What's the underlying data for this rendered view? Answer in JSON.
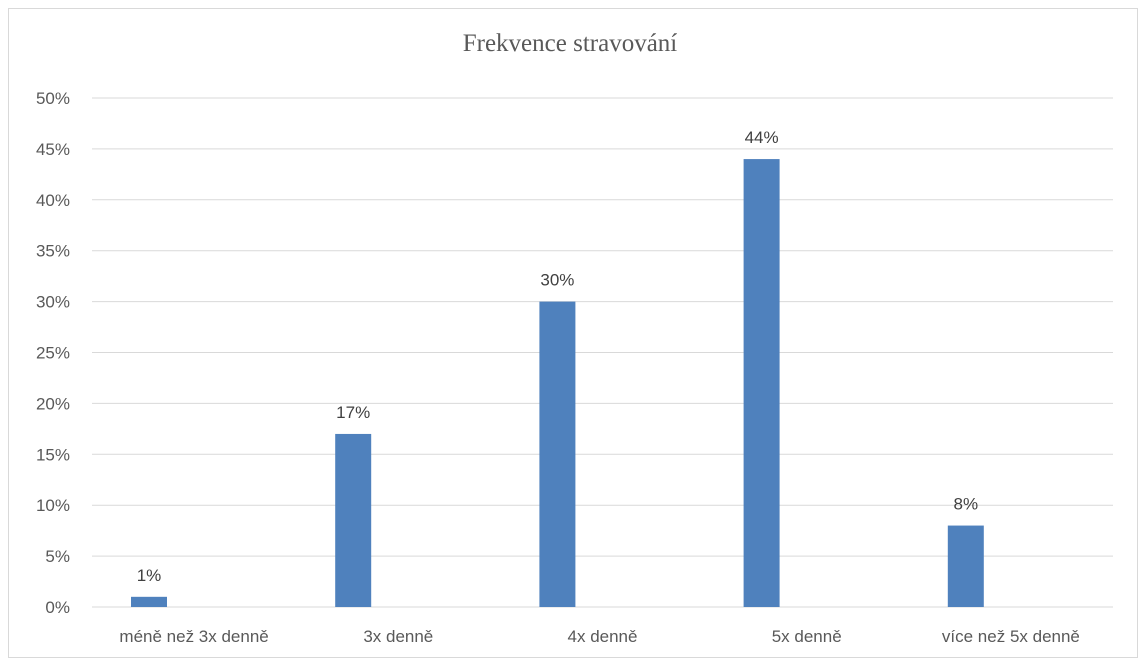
{
  "chart_data": {
    "type": "bar",
    "title": "Frekvence stravování",
    "categories": [
      "méně než 3x denně",
      "3x denně",
      "4x denně",
      "5x denně",
      "více než 5x denně"
    ],
    "values": [
      1,
      17,
      30,
      44,
      8
    ],
    "data_labels": [
      "1%",
      "17%",
      "30%",
      "44%",
      "8%"
    ],
    "y_ticks": [
      "0%",
      "5%",
      "10%",
      "15%",
      "20%",
      "25%",
      "30%",
      "35%",
      "40%",
      "45%",
      "50%"
    ],
    "ylim": [
      0,
      50
    ],
    "grid": true,
    "legend": "none",
    "bar_color": "#4f81bd",
    "grid_color": "#d9d9d9"
  }
}
